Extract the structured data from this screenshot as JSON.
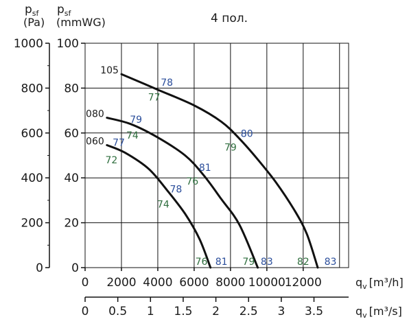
{
  "header": {
    "pa_symbol": "p",
    "pa_sub": "sf",
    "pa_unit": "(Pa)",
    "mm_symbol": "p",
    "mm_sub": "sf",
    "mm_unit": "(mmWG)",
    "title": "4 пол."
  },
  "chart_data": {
    "type": "line",
    "title": "4 пол.",
    "x_axis": {
      "range": [
        0,
        14500
      ],
      "ticks": [
        0,
        2000,
        4000,
        6000,
        8000,
        10000,
        12000
      ],
      "label_symbol": "q",
      "label_sub": "v",
      "label_unit": "[m³/h]"
    },
    "x2_axis": {
      "range": [
        0,
        4.03
      ],
      "ticks": [
        "0",
        "0.5",
        "1",
        "1.5",
        "2",
        "2.5",
        "3",
        "3.5"
      ],
      "tick_values": [
        0,
        0.5,
        1,
        1.5,
        2,
        2.5,
        3,
        3.5
      ],
      "label_symbol": "q",
      "label_sub": "v",
      "label_unit": "[m³/s]"
    },
    "y_axis_pa": {
      "range": [
        0,
        1000
      ],
      "ticks": [
        0,
        200,
        400,
        600,
        800,
        1000
      ]
    },
    "y_axis_mm": {
      "range": [
        0,
        100
      ],
      "ticks": [
        0,
        20,
        40,
        60,
        80,
        100
      ]
    },
    "grid": true,
    "series": [
      {
        "name": "105",
        "points": [
          [
            2000,
            862
          ],
          [
            4000,
            793
          ],
          [
            6000,
            723
          ],
          [
            7500,
            650
          ],
          [
            8500,
            574
          ],
          [
            9500,
            482
          ],
          [
            10500,
            380
          ],
          [
            11500,
            258
          ],
          [
            12200,
            150
          ],
          [
            12800,
            0
          ]
        ]
      },
      {
        "name": "080",
        "points": [
          [
            1200,
            668
          ],
          [
            2500,
            640
          ],
          [
            4000,
            580
          ],
          [
            5500,
            500
          ],
          [
            6500,
            414
          ],
          [
            7500,
            305
          ],
          [
            8500,
            190
          ],
          [
            9500,
            0
          ]
        ]
      },
      {
        "name": "060",
        "points": [
          [
            1200,
            546
          ],
          [
            2200,
            512
          ],
          [
            3500,
            440
          ],
          [
            4500,
            346
          ],
          [
            5500,
            240
          ],
          [
            6300,
            127
          ],
          [
            6900,
            0
          ]
        ]
      }
    ],
    "efficiency_labels": [
      {
        "text": "78",
        "x": 4500,
        "y": 825,
        "color": "blue"
      },
      {
        "text": "77",
        "x": 3800,
        "y": 760,
        "color": "green"
      },
      {
        "text": "80",
        "x": 8900,
        "y": 598,
        "color": "blue"
      },
      {
        "text": "79",
        "x": 8000,
        "y": 536,
        "color": "green"
      },
      {
        "text": "79",
        "x": 2800,
        "y": 660,
        "color": "blue"
      },
      {
        "text": "74",
        "x": 2600,
        "y": 590,
        "color": "green"
      },
      {
        "text": "77",
        "x": 1850,
        "y": 558,
        "color": "blue"
      },
      {
        "text": "72",
        "x": 1450,
        "y": 480,
        "color": "green"
      },
      {
        "text": "81",
        "x": 6600,
        "y": 447,
        "color": "blue"
      },
      {
        "text": "76",
        "x": 5900,
        "y": 386,
        "color": "green"
      },
      {
        "text": "78",
        "x": 5000,
        "y": 350,
        "color": "blue"
      },
      {
        "text": "74",
        "x": 4300,
        "y": 283,
        "color": "green"
      },
      {
        "text": "76",
        "x": 6400,
        "y": 28,
        "color": "green"
      },
      {
        "text": "81",
        "x": 7500,
        "y": 28,
        "color": "blue"
      },
      {
        "text": "79",
        "x": 9000,
        "y": 28,
        "color": "green"
      },
      {
        "text": "83",
        "x": 10000,
        "y": 28,
        "color": "blue"
      },
      {
        "text": "82",
        "x": 12000,
        "y": 28,
        "color": "green"
      },
      {
        "text": "83",
        "x": 13500,
        "y": 28,
        "color": "blue"
      }
    ],
    "colors": {
      "blue": "#2b4e9b",
      "green": "#2f6e3e",
      "curve": "#111111",
      "grid": "#111111"
    }
  }
}
